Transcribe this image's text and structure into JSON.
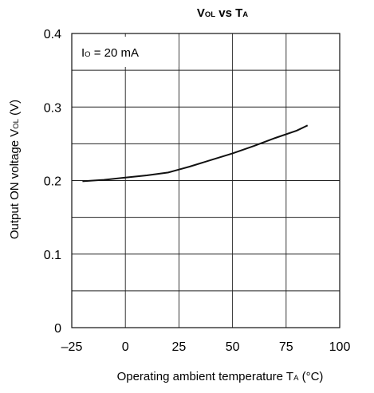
{
  "chart_data": {
    "type": "line",
    "title": {
      "main1": "V",
      "sub1": "OL",
      "main2": " vs T",
      "sub2": "A"
    },
    "xlabel": {
      "text": "Operating ambient temperature  T",
      "sub": "A",
      "unit": " (°C)"
    },
    "ylabel": {
      "text": "Output ON voltage  V",
      "sub": "OL",
      "unit": " (V)"
    },
    "annotation": {
      "main": "I",
      "sub": "O",
      "rest": " = 20 mA"
    },
    "xlim": [
      -25,
      100
    ],
    "ylim": [
      0,
      0.4
    ],
    "xticks": [
      -25,
      0,
      25,
      50,
      75,
      100
    ],
    "xtick_labels": [
      "–25",
      "0",
      "25",
      "50",
      "75",
      "100"
    ],
    "yticks": [
      0,
      0.1,
      0.2,
      0.3,
      0.4
    ],
    "ytick_labels": [
      "0",
      "0.1",
      "0.2",
      "0.3",
      "0.4"
    ],
    "grid": true,
    "series": [
      {
        "x": [
          -20,
          -10,
          0,
          10,
          20,
          25,
          30,
          40,
          50,
          60,
          70,
          80,
          85
        ],
        "y": [
          0.199,
          0.201,
          0.204,
          0.207,
          0.211,
          0.215,
          0.219,
          0.228,
          0.237,
          0.247,
          0.258,
          0.268,
          0.275
        ]
      }
    ],
    "colors": {
      "line": "#111111",
      "grid": "#222222",
      "frame": "#111111"
    }
  }
}
